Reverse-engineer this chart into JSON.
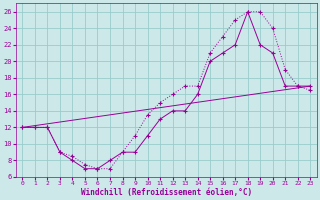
{
  "xlabel": "Windchill (Refroidissement éolien,°C)",
  "bg_color": "#cce8e8",
  "grid_color": "#99cccc",
  "line_color": "#990099",
  "xlim": [
    -0.5,
    23.5
  ],
  "ylim": [
    6,
    27
  ],
  "xticks": [
    0,
    1,
    2,
    3,
    4,
    5,
    6,
    7,
    8,
    9,
    10,
    11,
    12,
    13,
    14,
    15,
    16,
    17,
    18,
    19,
    20,
    21,
    22,
    23
  ],
  "yticks": [
    6,
    8,
    10,
    12,
    14,
    16,
    18,
    20,
    22,
    24,
    26
  ],
  "line1_x": [
    0,
    1,
    2,
    3,
    4,
    5,
    6,
    7,
    8,
    9,
    10,
    11,
    12,
    13,
    14,
    15,
    16,
    17,
    18,
    19,
    20,
    21,
    22,
    23
  ],
  "line1_y": [
    12,
    12,
    12,
    9,
    8.5,
    7.5,
    7,
    7,
    9,
    11,
    13.5,
    15,
    16,
    17,
    17,
    21,
    23,
    25,
    26,
    26,
    24,
    19,
    17,
    16.5
  ],
  "line2_x": [
    0,
    1,
    2,
    3,
    4,
    5,
    6,
    7,
    8,
    9,
    10,
    11,
    12,
    13,
    14,
    15,
    16,
    17,
    18,
    19,
    20,
    21,
    22,
    23
  ],
  "line2_y": [
    12,
    12,
    12,
    9,
    8,
    7,
    7,
    8,
    9,
    9,
    11,
    13,
    14,
    14,
    16,
    20,
    21,
    22,
    26,
    22,
    21,
    17,
    17,
    17
  ],
  "line3_x": [
    0,
    23
  ],
  "line3_y": [
    12,
    17
  ]
}
